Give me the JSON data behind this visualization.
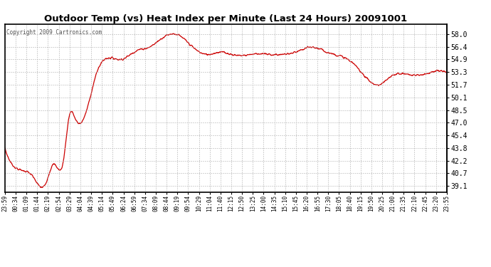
{
  "title": "Outdoor Temp (vs) Heat Index per Minute (Last 24 Hours) 20091001",
  "copyright": "Copyright 2009 Cartronics.com",
  "line_color": "#cc0000",
  "bg_color": "#ffffff",
  "grid_color": "#aaaaaa",
  "ylim": [
    38.3,
    59.3
  ],
  "yticks": [
    39.1,
    40.7,
    42.2,
    43.8,
    45.4,
    47.0,
    48.5,
    50.1,
    51.7,
    53.3,
    54.9,
    56.4,
    58.0
  ],
  "xtick_labels": [
    "23:59",
    "00:34",
    "01:09",
    "01:44",
    "02:19",
    "02:54",
    "03:29",
    "04:04",
    "04:39",
    "05:14",
    "05:49",
    "06:24",
    "06:59",
    "07:34",
    "08:09",
    "08:44",
    "09:19",
    "09:54",
    "10:29",
    "11:04",
    "11:40",
    "12:15",
    "12:50",
    "13:25",
    "14:00",
    "14:35",
    "15:10",
    "15:45",
    "16:20",
    "16:55",
    "17:30",
    "18:05",
    "18:40",
    "19:15",
    "19:50",
    "20:25",
    "21:00",
    "21:35",
    "22:10",
    "22:45",
    "23:20",
    "23:55"
  ],
  "curve_keypoints_x": [
    0,
    30,
    60,
    90,
    130,
    160,
    190,
    210,
    230,
    260,
    300,
    330,
    380,
    430,
    470,
    510,
    560,
    610,
    660,
    700,
    740,
    780,
    820,
    860,
    900,
    950,
    1000,
    1050,
    1100,
    1140,
    1180,
    1220,
    1260,
    1300,
    1340,
    1380,
    1440
  ],
  "curve_keypoints_y": [
    43.8,
    41.5,
    41.0,
    40.3,
    39.2,
    41.8,
    42.1,
    47.9,
    47.4,
    47.8,
    53.3,
    55.0,
    54.9,
    56.0,
    56.4,
    57.5,
    58.0,
    56.5,
    55.5,
    55.8,
    55.5,
    55.4,
    55.6,
    55.5,
    55.5,
    55.8,
    56.4,
    55.8,
    55.2,
    54.2,
    52.5,
    51.7,
    52.8,
    53.1,
    52.9,
    53.2,
    53.2
  ]
}
